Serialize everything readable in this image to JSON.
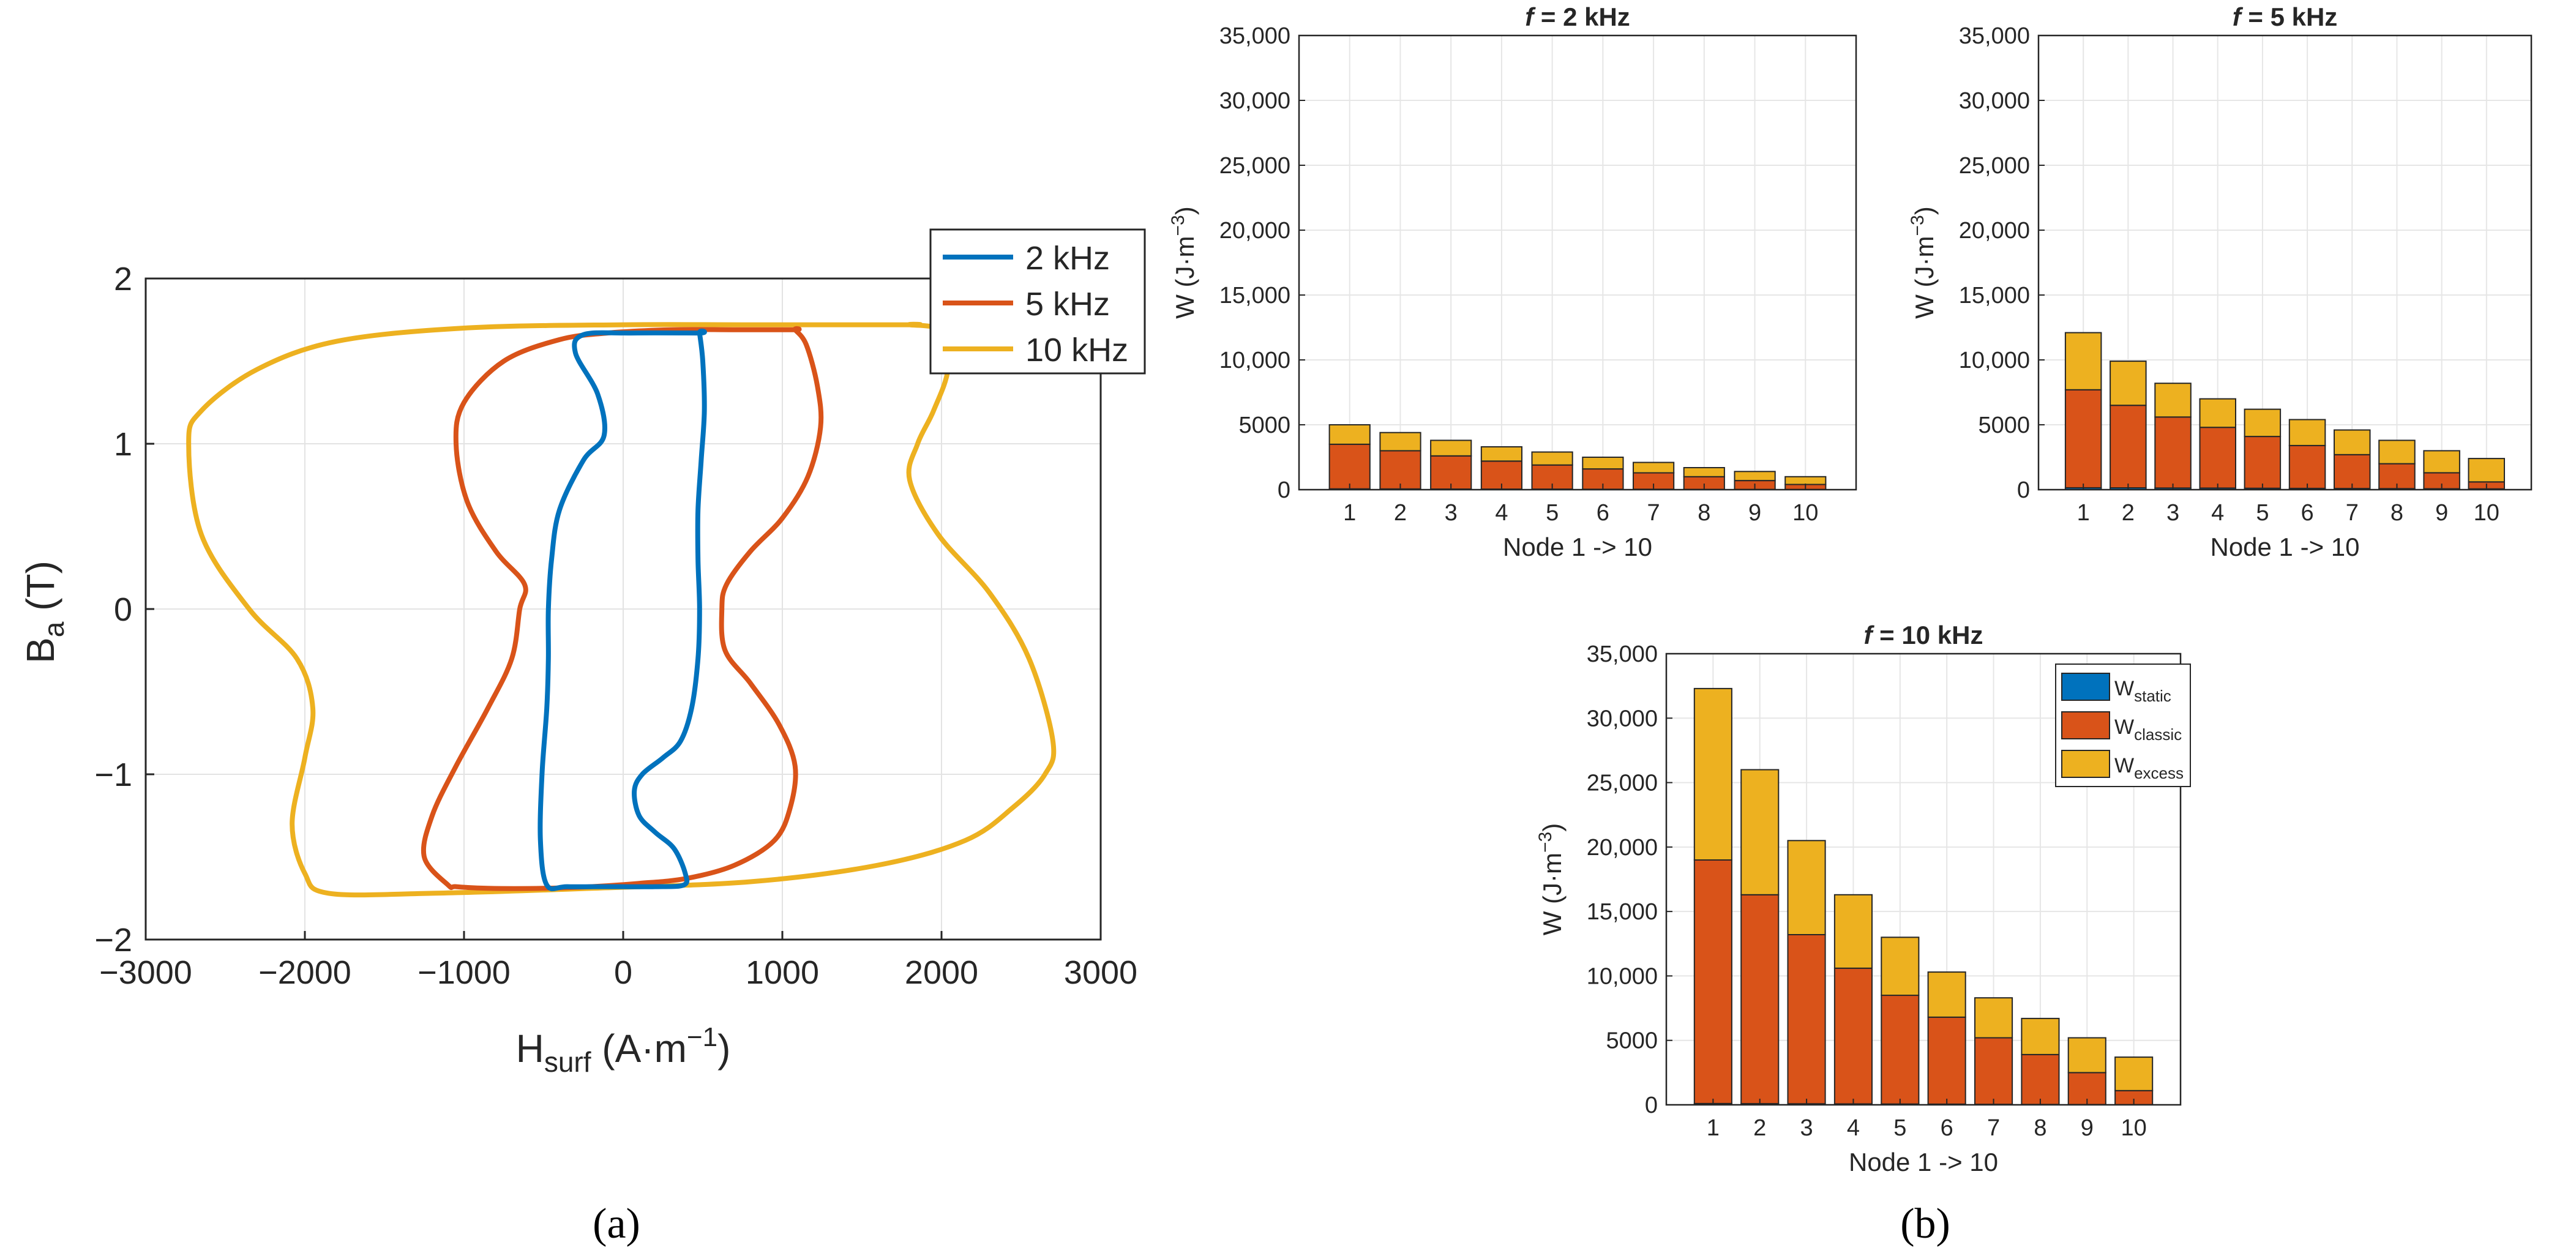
{
  "figure": {
    "panel_a_label": "(a)",
    "panel_b_label": "(b)"
  },
  "chart_data": [
    {
      "id": "a",
      "type": "line",
      "title": "",
      "xlabel": "H",
      "xlabel_sub": "surf",
      "xlabel_unit_pre": " (A·m",
      "xlabel_unit_sup": "−1",
      "xlabel_unit_post": ")",
      "ylabel": "B",
      "ylabel_sub": "a",
      "ylabel_unit": " (T)",
      "xlim": [
        -3000,
        3000
      ],
      "ylim": [
        -2,
        2
      ],
      "xticks": [
        -3000,
        -2000,
        -1000,
        0,
        1000,
        2000,
        3000
      ],
      "xtick_labels": [
        "−3000",
        "−2000",
        "−1000",
        "0",
        "1000",
        "2000",
        "3000"
      ],
      "yticks": [
        -2,
        -1,
        0,
        1,
        2
      ],
      "ytick_labels": [
        "−2",
        "−1",
        "0",
        "1",
        "2"
      ],
      "grid": true,
      "legend_position": "outside-top-right",
      "series": [
        {
          "name": "2 kHz",
          "color": "#0072BD",
          "x": [
            480,
            500,
            510,
            490,
            470,
            470,
            480,
            470,
            430,
            360,
            250,
            120,
            70,
            100,
            200,
            320,
            390,
            380,
            200,
            -60,
            -350,
            -480,
            -520,
            -510,
            -480,
            -470,
            -470,
            -450,
            -400,
            -250,
            -120,
            -160,
            -300,
            -250,
            50,
            480
          ],
          "y": [
            1.67,
            1.5,
            1.2,
            0.9,
            0.6,
            0.3,
            0.0,
            -0.3,
            -0.6,
            -0.8,
            -0.9,
            -1.0,
            -1.1,
            -1.25,
            -1.35,
            -1.45,
            -1.6,
            -1.67,
            -1.68,
            -1.68,
            -1.68,
            -1.67,
            -1.4,
            -1.0,
            -0.6,
            -0.3,
            0.0,
            0.3,
            0.6,
            0.9,
            1.05,
            1.3,
            1.55,
            1.66,
            1.67,
            1.67
          ]
        },
        {
          "name": "5 kHz",
          "color": "#D95319",
          "x": [
            1080,
            1150,
            1220,
            1240,
            1160,
            1000,
            800,
            650,
            620,
            640,
            800,
            980,
            1080,
            1050,
            950,
            700,
            400,
            100,
            -200,
            -500,
            -850,
            -1050,
            -1100,
            -1250,
            -1200,
            -1050,
            -850,
            -700,
            -650,
            -620,
            -800,
            -980,
            -1050,
            -1000,
            -750,
            -400,
            -100,
            300,
            700,
            1080
          ],
          "y": [
            1.69,
            1.6,
            1.35,
            1.1,
            0.8,
            0.55,
            0.35,
            0.15,
            0.0,
            -0.25,
            -0.45,
            -0.7,
            -0.95,
            -1.2,
            -1.4,
            -1.55,
            -1.63,
            -1.66,
            -1.68,
            -1.69,
            -1.69,
            -1.68,
            -1.67,
            -1.5,
            -1.25,
            -0.95,
            -0.6,
            -0.3,
            0.0,
            0.15,
            0.35,
            0.65,
            1.0,
            1.25,
            1.5,
            1.63,
            1.67,
            1.69,
            1.69,
            1.69
          ]
        },
        {
          "name": "10 kHz",
          "color": "#EDB120",
          "x": [
            1800,
            2000,
            2040,
            1950,
            1850,
            1800,
            1980,
            2300,
            2550,
            2700,
            2650,
            2450,
            2150,
            1600,
            800,
            -200,
            -1200,
            -1850,
            -2000,
            -2080,
            -2000,
            -1950,
            -2050,
            -2350,
            -2650,
            -2730,
            -2650,
            -2300,
            -1800,
            -1000,
            0,
            800,
            1800
          ],
          "y": [
            1.72,
            1.68,
            1.45,
            1.2,
            1.0,
            0.78,
            0.45,
            0.1,
            -0.3,
            -0.8,
            -1.0,
            -1.2,
            -1.4,
            -1.55,
            -1.65,
            -1.69,
            -1.72,
            -1.72,
            -1.6,
            -1.3,
            -0.9,
            -0.6,
            -0.3,
            0.0,
            0.45,
            1.0,
            1.2,
            1.45,
            1.62,
            1.7,
            1.72,
            1.72,
            1.72
          ]
        }
      ]
    },
    {
      "id": "b1",
      "type": "bar",
      "stacked": true,
      "title_f": "f",
      "title_rest": " = 2 kHz",
      "xlabel": "Node 1 -> 10",
      "ylabel": "W (J·m",
      "ylabel_sup": "−3",
      "ylabel_post": ")",
      "ylim": [
        0,
        35000
      ],
      "yticks": [
        0,
        5000,
        10000,
        15000,
        20000,
        25000,
        30000,
        35000
      ],
      "ytick_labels": [
        "0",
        "5000",
        "10,000",
        "15,000",
        "20,000",
        "25,000",
        "30,000",
        "35,000"
      ],
      "grid": true,
      "categories": [
        "1",
        "2",
        "3",
        "4",
        "5",
        "6",
        "7",
        "8",
        "9",
        "10"
      ],
      "series": [
        {
          "name": "W_static",
          "color": "#0072BD",
          "values": [
            60,
            55,
            50,
            45,
            40,
            35,
            30,
            25,
            20,
            15
          ]
        },
        {
          "name": "W_classic",
          "color": "#D95319",
          "values": [
            3440,
            2945,
            2550,
            2155,
            1860,
            1565,
            1270,
            975,
            680,
            385
          ]
        },
        {
          "name": "W_excess",
          "color": "#EDB120",
          "values": [
            1500,
            1400,
            1200,
            1100,
            1000,
            900,
            800,
            700,
            700,
            600
          ]
        }
      ]
    },
    {
      "id": "b2",
      "type": "bar",
      "stacked": true,
      "title_f": "f",
      "title_rest": " = 5 kHz",
      "xlabel": "Node 1 -> 10",
      "ylabel": "W (J·m",
      "ylabel_sup": "−3",
      "ylabel_post": ")",
      "ylim": [
        0,
        35000
      ],
      "yticks": [
        0,
        5000,
        10000,
        15000,
        20000,
        25000,
        30000,
        35000
      ],
      "ytick_labels": [
        "0",
        "5000",
        "10,000",
        "15,000",
        "20,000",
        "25,000",
        "30,000",
        "35,000"
      ],
      "grid": true,
      "categories": [
        "1",
        "2",
        "3",
        "4",
        "5",
        "6",
        "7",
        "8",
        "9",
        "10"
      ],
      "series": [
        {
          "name": "W_static",
          "color": "#0072BD",
          "values": [
            150,
            140,
            130,
            120,
            110,
            100,
            90,
            80,
            70,
            60
          ]
        },
        {
          "name": "W_classic",
          "color": "#D95319",
          "values": [
            7550,
            6360,
            5470,
            4680,
            3990,
            3300,
            2610,
            1920,
            1230,
            540
          ]
        },
        {
          "name": "W_excess",
          "color": "#EDB120",
          "values": [
            4400,
            3400,
            2600,
            2200,
            2100,
            2000,
            1900,
            1800,
            1700,
            1800
          ]
        }
      ]
    },
    {
      "id": "b3",
      "type": "bar",
      "stacked": true,
      "title_f": "f",
      "title_rest": " = 10 kHz",
      "xlabel": "Node 1 -> 10",
      "ylabel": "W (J·m",
      "ylabel_sup": "−3",
      "ylabel_post": ")",
      "ylim": [
        0,
        35000
      ],
      "yticks": [
        0,
        5000,
        10000,
        15000,
        20000,
        25000,
        30000,
        35000
      ],
      "ytick_labels": [
        "0",
        "5000",
        "10,000",
        "15,000",
        "20,000",
        "25,000",
        "30,000",
        "35,000"
      ],
      "grid": true,
      "legend_position": "top-right",
      "categories": [
        "1",
        "2",
        "3",
        "4",
        "5",
        "6",
        "7",
        "8",
        "9",
        "10"
      ],
      "series": [
        {
          "name": "W_static",
          "color": "#0072BD",
          "values": [
            100,
            90,
            80,
            70,
            60,
            50,
            40,
            30,
            20,
            10
          ]
        },
        {
          "name": "W_classic",
          "color": "#D95319",
          "values": [
            18900,
            16210,
            13120,
            10530,
            8440,
            6750,
            5160,
            3870,
            2480,
            1090
          ]
        },
        {
          "name": "W_excess",
          "color": "#EDB120",
          "values": [
            13300,
            9700,
            7300,
            5700,
            4500,
            3500,
            3100,
            2800,
            2700,
            2600
          ]
        }
      ],
      "legend": [
        {
          "main": "W",
          "sub": "static",
          "color": "#0072BD"
        },
        {
          "main": "W",
          "sub": "classic",
          "color": "#D95319"
        },
        {
          "main": "W",
          "sub": "excess",
          "color": "#EDB120"
        }
      ]
    }
  ]
}
